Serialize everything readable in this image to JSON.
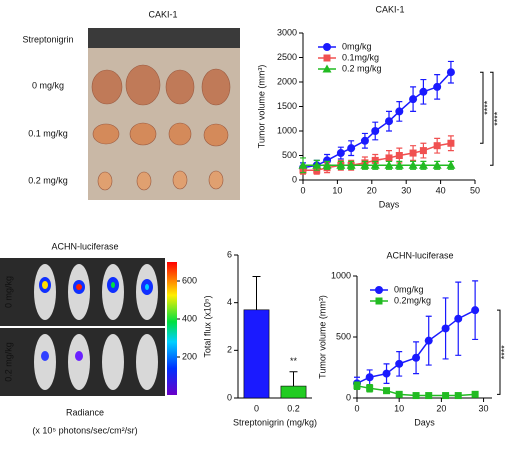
{
  "photo_a": {
    "title": "CAKI-1",
    "row_labels": [
      "Streptonigrin",
      "0 mg/kg",
      "0.1 mg/kg",
      "0.2 mg/kg"
    ]
  },
  "image_b": {
    "title": "ACHN-luciferase",
    "row_labels": [
      "0 mg/kg",
      "0.2 mg/kg"
    ],
    "colorbar_range": [
      0,
      700
    ],
    "colorbar_ticks": [
      200,
      400,
      600
    ],
    "caption": [
      "Radiance",
      "(x 10⁵ photons/sec/cm²/sr)"
    ]
  },
  "chart_data": [
    {
      "type": "line",
      "title": "CAKI-1",
      "xlabel": "Days",
      "ylabel": "Tumor volume (mm³)",
      "x": [
        0,
        4,
        7,
        11,
        14,
        18,
        21,
        25,
        28,
        32,
        35,
        39,
        43
      ],
      "series": [
        {
          "name": "0mg/kg",
          "color": "#1a1aff",
          "marker": "circle",
          "values": [
            250,
            300,
            400,
            550,
            650,
            800,
            1000,
            1200,
            1400,
            1650,
            1800,
            1900,
            2200
          ],
          "errors": [
            100,
            100,
            120,
            120,
            150,
            150,
            180,
            200,
            200,
            250,
            250,
            250,
            220
          ]
        },
        {
          "name": "0.1mg/kg",
          "color": "#f05050",
          "marker": "square",
          "values": [
            200,
            200,
            250,
            300,
            300,
            350,
            400,
            450,
            500,
            550,
            600,
            700,
            750
          ],
          "errors": [
            80,
            80,
            100,
            100,
            100,
            120,
            120,
            150,
            150,
            150,
            150,
            150,
            150
          ]
        },
        {
          "name": "0.2 mg/kg",
          "color": "#22bb22",
          "marker": "triangle",
          "values": [
            300,
            300,
            300,
            300,
            300,
            300,
            300,
            300,
            300,
            300,
            300,
            300,
            300
          ],
          "errors": [
            150,
            100,
            80,
            80,
            80,
            80,
            80,
            80,
            80,
            80,
            80,
            80,
            80
          ]
        }
      ],
      "xlim": [
        0,
        50
      ],
      "xticks": [
        0,
        10,
        20,
        30,
        40,
        50
      ],
      "ylim": [
        0,
        3000
      ],
      "yticks": [
        0,
        500,
        1000,
        1500,
        2000,
        2500,
        3000
      ],
      "legend": "upper left",
      "annotations": [
        "****",
        "****"
      ]
    },
    {
      "type": "bar",
      "xlabel": "Streptonigrin (mg/kg)",
      "ylabel": "Total flux (x10⁵)",
      "categories": [
        "0",
        "0.2"
      ],
      "values": [
        3.7,
        0.5
      ],
      "errors": [
        1.4,
        0.6
      ],
      "colors": [
        "#1a1aff",
        "#22cc22"
      ],
      "ylim": [
        0,
        6
      ],
      "yticks": [
        0,
        2,
        4,
        6
      ],
      "annotations": [
        "**"
      ]
    },
    {
      "type": "line",
      "title": "ACHN-luciferase",
      "xlabel": "Days",
      "ylabel": "Tumor volume (mm³)",
      "x": [
        0,
        3,
        7,
        10,
        14,
        17,
        21,
        24,
        28
      ],
      "series": [
        {
          "name": "0mg/kg",
          "color": "#1a1aff",
          "marker": "circle",
          "values": [
            120,
            170,
            200,
            280,
            330,
            470,
            570,
            650,
            720
          ],
          "errors": [
            50,
            60,
            80,
            100,
            130,
            200,
            250,
            300,
            240
          ]
        },
        {
          "name": "0.2mg/kg",
          "color": "#22bb22",
          "marker": "square",
          "values": [
            100,
            80,
            60,
            30,
            20,
            20,
            20,
            20,
            30
          ],
          "errors": [
            30,
            30,
            20,
            15,
            10,
            10,
            10,
            10,
            10
          ]
        }
      ],
      "xlim": [
        0,
        32
      ],
      "xticks": [
        0,
        10,
        20,
        30
      ],
      "ylim": [
        0,
        1000
      ],
      "yticks": [
        0,
        500,
        1000
      ],
      "legend": "upper left",
      "annotations": [
        "****"
      ]
    }
  ]
}
